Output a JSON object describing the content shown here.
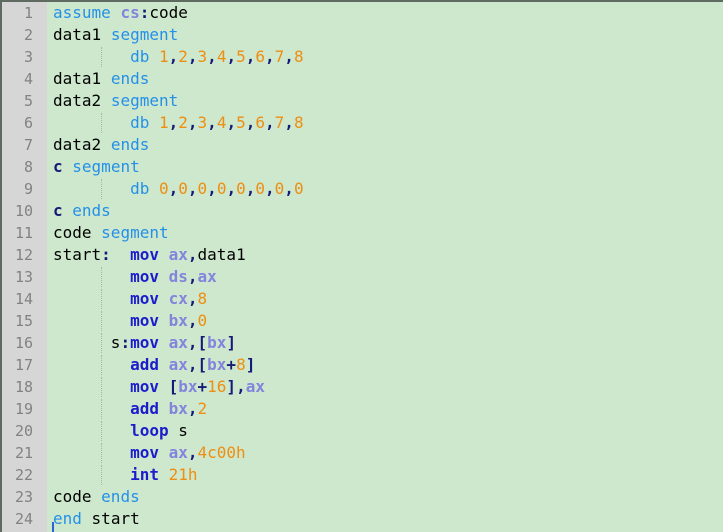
{
  "editor": {
    "language": "x86-assembly",
    "colors": {
      "background": "#cde8cd",
      "gutter_background": "#d6d6d6",
      "gutter_foreground": "#828282",
      "border": "#5f6a60",
      "plain": "#000000",
      "keyword_blue": "#2590e8",
      "instruction_blue": "#1c1ccc",
      "register_purple": "#8484dd",
      "operator_navy": "#151a78",
      "number_orange": "#ee8e12",
      "indent_guide": "#a4b5a4",
      "caret": "#2b62d9"
    },
    "cursor": {
      "line": 25,
      "column": 1
    },
    "lines": [
      {
        "n": "1",
        "guide": false,
        "tokens": [
          [
            "assume",
            "kw1"
          ],
          [
            " ",
            "pl"
          ],
          [
            "cs",
            "reg"
          ],
          [
            ":",
            "op"
          ],
          [
            "code",
            "pl"
          ]
        ]
      },
      {
        "n": "2",
        "guide": false,
        "tokens": [
          [
            "data1",
            "pl"
          ],
          [
            " ",
            "pl"
          ],
          [
            "segment",
            "kw1"
          ]
        ]
      },
      {
        "n": "3",
        "guide": true,
        "tokens": [
          [
            "        ",
            "pl"
          ],
          [
            "db",
            "kw1"
          ],
          [
            " ",
            "pl"
          ],
          [
            "1",
            "num"
          ],
          [
            ",",
            "op"
          ],
          [
            "2",
            "num"
          ],
          [
            ",",
            "op"
          ],
          [
            "3",
            "num"
          ],
          [
            ",",
            "op"
          ],
          [
            "4",
            "num"
          ],
          [
            ",",
            "op"
          ],
          [
            "5",
            "num"
          ],
          [
            ",",
            "op"
          ],
          [
            "6",
            "num"
          ],
          [
            ",",
            "op"
          ],
          [
            "7",
            "num"
          ],
          [
            ",",
            "op"
          ],
          [
            "8",
            "num"
          ]
        ]
      },
      {
        "n": "4",
        "guide": false,
        "tokens": [
          [
            "data1",
            "pl"
          ],
          [
            " ",
            "pl"
          ],
          [
            "ends",
            "kw1"
          ]
        ]
      },
      {
        "n": "5",
        "guide": false,
        "tokens": [
          [
            "data2",
            "pl"
          ],
          [
            " ",
            "pl"
          ],
          [
            "segment",
            "kw1"
          ]
        ]
      },
      {
        "n": "6",
        "guide": true,
        "tokens": [
          [
            "        ",
            "pl"
          ],
          [
            "db",
            "kw1"
          ],
          [
            " ",
            "pl"
          ],
          [
            "1",
            "num"
          ],
          [
            ",",
            "op"
          ],
          [
            "2",
            "num"
          ],
          [
            ",",
            "op"
          ],
          [
            "3",
            "num"
          ],
          [
            ",",
            "op"
          ],
          [
            "4",
            "num"
          ],
          [
            ",",
            "op"
          ],
          [
            "5",
            "num"
          ],
          [
            ",",
            "op"
          ],
          [
            "6",
            "num"
          ],
          [
            ",",
            "op"
          ],
          [
            "7",
            "num"
          ],
          [
            ",",
            "op"
          ],
          [
            "8",
            "num"
          ]
        ]
      },
      {
        "n": "7",
        "guide": false,
        "tokens": [
          [
            "data2",
            "pl"
          ],
          [
            " ",
            "pl"
          ],
          [
            "ends",
            "kw1"
          ]
        ]
      },
      {
        "n": "8",
        "guide": false,
        "tokens": [
          [
            "c",
            "op"
          ],
          [
            " ",
            "pl"
          ],
          [
            "segment",
            "kw1"
          ]
        ]
      },
      {
        "n": "9",
        "guide": true,
        "tokens": [
          [
            "        ",
            "pl"
          ],
          [
            "db",
            "kw1"
          ],
          [
            " ",
            "pl"
          ],
          [
            "0",
            "num"
          ],
          [
            ",",
            "op"
          ],
          [
            "0",
            "num"
          ],
          [
            ",",
            "op"
          ],
          [
            "0",
            "num"
          ],
          [
            ",",
            "op"
          ],
          [
            "0",
            "num"
          ],
          [
            ",",
            "op"
          ],
          [
            "0",
            "num"
          ],
          [
            ",",
            "op"
          ],
          [
            "0",
            "num"
          ],
          [
            ",",
            "op"
          ],
          [
            "0",
            "num"
          ],
          [
            ",",
            "op"
          ],
          [
            "0",
            "num"
          ]
        ]
      },
      {
        "n": "10",
        "guide": false,
        "tokens": [
          [
            "c",
            "op"
          ],
          [
            " ",
            "pl"
          ],
          [
            "ends",
            "kw1"
          ]
        ]
      },
      {
        "n": "11",
        "guide": false,
        "tokens": [
          [
            "code",
            "pl"
          ],
          [
            " ",
            "pl"
          ],
          [
            "segment",
            "kw1"
          ]
        ]
      },
      {
        "n": "12",
        "guide": false,
        "tokens": [
          [
            "start",
            "pl"
          ],
          [
            ":",
            "op"
          ],
          [
            "  ",
            "pl"
          ],
          [
            "mov",
            "kw2"
          ],
          [
            " ",
            "pl"
          ],
          [
            "ax",
            "reg"
          ],
          [
            ",",
            "op"
          ],
          [
            "data1",
            "pl"
          ]
        ]
      },
      {
        "n": "13",
        "guide": true,
        "tokens": [
          [
            "        ",
            "pl"
          ],
          [
            "mov",
            "kw2"
          ],
          [
            " ",
            "pl"
          ],
          [
            "ds",
            "reg"
          ],
          [
            ",",
            "op"
          ],
          [
            "ax",
            "reg"
          ]
        ]
      },
      {
        "n": "14",
        "guide": true,
        "tokens": [
          [
            "        ",
            "pl"
          ],
          [
            "mov",
            "kw2"
          ],
          [
            " ",
            "pl"
          ],
          [
            "cx",
            "reg"
          ],
          [
            ",",
            "op"
          ],
          [
            "8",
            "num"
          ]
        ]
      },
      {
        "n": "15",
        "guide": true,
        "tokens": [
          [
            "        ",
            "pl"
          ],
          [
            "mov",
            "kw2"
          ],
          [
            " ",
            "pl"
          ],
          [
            "bx",
            "reg"
          ],
          [
            ",",
            "op"
          ],
          [
            "0",
            "num"
          ]
        ]
      },
      {
        "n": "16",
        "guide": true,
        "tokens": [
          [
            "      ",
            "pl"
          ],
          [
            "s",
            "pl"
          ],
          [
            ":",
            "op"
          ],
          [
            "mov",
            "kw2"
          ],
          [
            " ",
            "pl"
          ],
          [
            "ax",
            "reg"
          ],
          [
            ",",
            "op"
          ],
          [
            "[",
            "op"
          ],
          [
            "bx",
            "reg"
          ],
          [
            "]",
            "op"
          ]
        ]
      },
      {
        "n": "17",
        "guide": true,
        "tokens": [
          [
            "        ",
            "pl"
          ],
          [
            "add",
            "kw2"
          ],
          [
            " ",
            "pl"
          ],
          [
            "ax",
            "reg"
          ],
          [
            ",",
            "op"
          ],
          [
            "[",
            "op"
          ],
          [
            "bx",
            "reg"
          ],
          [
            "+",
            "op"
          ],
          [
            "8",
            "num"
          ],
          [
            "]",
            "op"
          ]
        ]
      },
      {
        "n": "18",
        "guide": true,
        "tokens": [
          [
            "        ",
            "pl"
          ],
          [
            "mov",
            "kw2"
          ],
          [
            " ",
            "pl"
          ],
          [
            "[",
            "op"
          ],
          [
            "bx",
            "reg"
          ],
          [
            "+",
            "op"
          ],
          [
            "16",
            "num"
          ],
          [
            "]",
            "op"
          ],
          [
            ",",
            "op"
          ],
          [
            "ax",
            "reg"
          ]
        ]
      },
      {
        "n": "19",
        "guide": true,
        "tokens": [
          [
            "        ",
            "pl"
          ],
          [
            "add",
            "kw2"
          ],
          [
            " ",
            "pl"
          ],
          [
            "bx",
            "reg"
          ],
          [
            ",",
            "op"
          ],
          [
            "2",
            "num"
          ]
        ]
      },
      {
        "n": "20",
        "guide": true,
        "tokens": [
          [
            "        ",
            "pl"
          ],
          [
            "loop",
            "kw2"
          ],
          [
            " ",
            "pl"
          ],
          [
            "s",
            "pl"
          ]
        ]
      },
      {
        "n": "21",
        "guide": true,
        "tokens": [
          [
            "        ",
            "pl"
          ],
          [
            "mov",
            "kw2"
          ],
          [
            " ",
            "pl"
          ],
          [
            "ax",
            "reg"
          ],
          [
            ",",
            "op"
          ],
          [
            "4c00h",
            "num"
          ]
        ]
      },
      {
        "n": "22",
        "guide": true,
        "tokens": [
          [
            "        ",
            "pl"
          ],
          [
            "int",
            "kw2"
          ],
          [
            " ",
            "pl"
          ],
          [
            "21h",
            "num"
          ]
        ]
      },
      {
        "n": "23",
        "guide": false,
        "tokens": [
          [
            "code",
            "pl"
          ],
          [
            " ",
            "pl"
          ],
          [
            "ends",
            "kw1"
          ]
        ]
      },
      {
        "n": "24",
        "guide": false,
        "tokens": [
          [
            "end",
            "kw1"
          ],
          [
            " ",
            "pl"
          ],
          [
            "start",
            "pl"
          ]
        ]
      }
    ]
  }
}
